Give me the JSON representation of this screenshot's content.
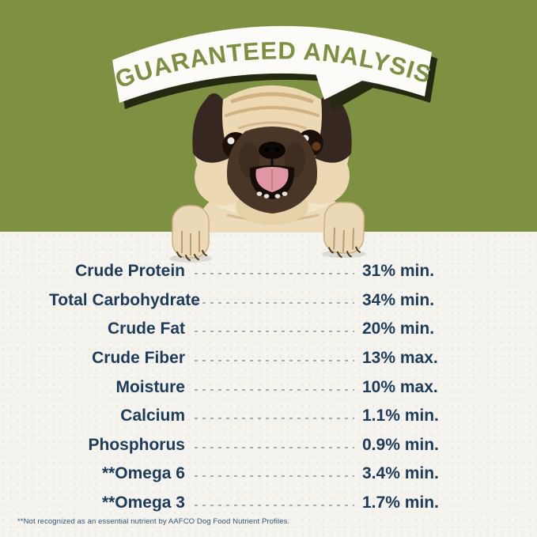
{
  "banner": {
    "title": "GUARANTEED ANALYSIS"
  },
  "colors": {
    "background_top": "#7e9142",
    "background_bottom": "#f5f3ee",
    "text_navy": "#1d3b5a",
    "leader": "#98a2ab",
    "banner_text": "#7b9040",
    "banner_shadow": "#242a11",
    "bubble": "#fdfcf8"
  },
  "photo": {
    "subject": "pug dog peeking over ledge with paws hanging"
  },
  "analysis": {
    "rows": [
      {
        "label": "Crude Protein",
        "value": "31% min."
      },
      {
        "label": "Total Carbohydrate",
        "value": "34% min."
      },
      {
        "label": "Crude Fat",
        "value": "20% min."
      },
      {
        "label": "Crude Fiber",
        "value": "13% max."
      },
      {
        "label": "Moisture",
        "value": "10% max."
      },
      {
        "label": "Calcium",
        "value": "1.1% min."
      },
      {
        "label": "Phosphorus",
        "value": "0.9% min."
      },
      {
        "label": "**Omega 6",
        "value": "3.4% min."
      },
      {
        "label": "**Omega 3",
        "value": "1.7% min."
      }
    ]
  },
  "footnote": "**Not recognized as an essential nutrient by AAFCO Dog Food Nutrient Profiles."
}
